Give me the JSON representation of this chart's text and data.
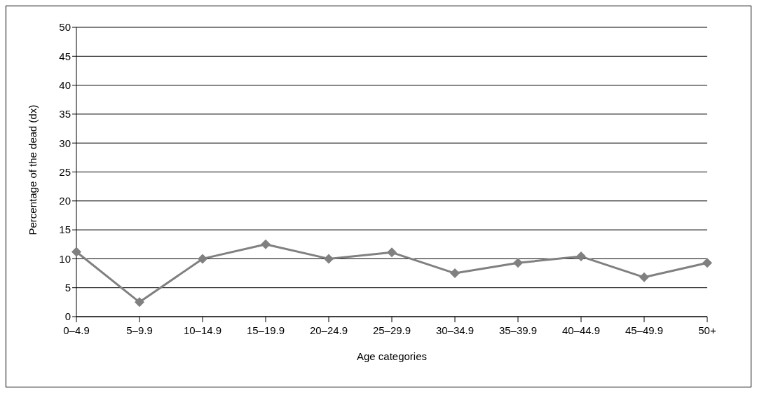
{
  "chart_data": {
    "type": "line",
    "xlabel": "Age categories",
    "ylabel": "Percentage of the dead (dx)",
    "categories": [
      "0–4.9",
      "5–9.9",
      "10–14.9",
      "15–19.9",
      "20–24.9",
      "25–29.9",
      "30–34.9",
      "35–39.9",
      "40–44.9",
      "45–49.9",
      "50+"
    ],
    "series": [
      {
        "color": "#808080",
        "values": [
          11.2,
          2.5,
          10,
          12.5,
          10,
          11.1,
          7.5,
          9.3,
          10.4,
          6.8,
          9.3
        ]
      }
    ],
    "ylim": [
      0,
      50
    ],
    "yticks": [
      0,
      5,
      10,
      15,
      20,
      25,
      30,
      35,
      40,
      45,
      50
    ],
    "grid": "y",
    "legend": false,
    "marker": "diamond",
    "line_style": "solid"
  }
}
